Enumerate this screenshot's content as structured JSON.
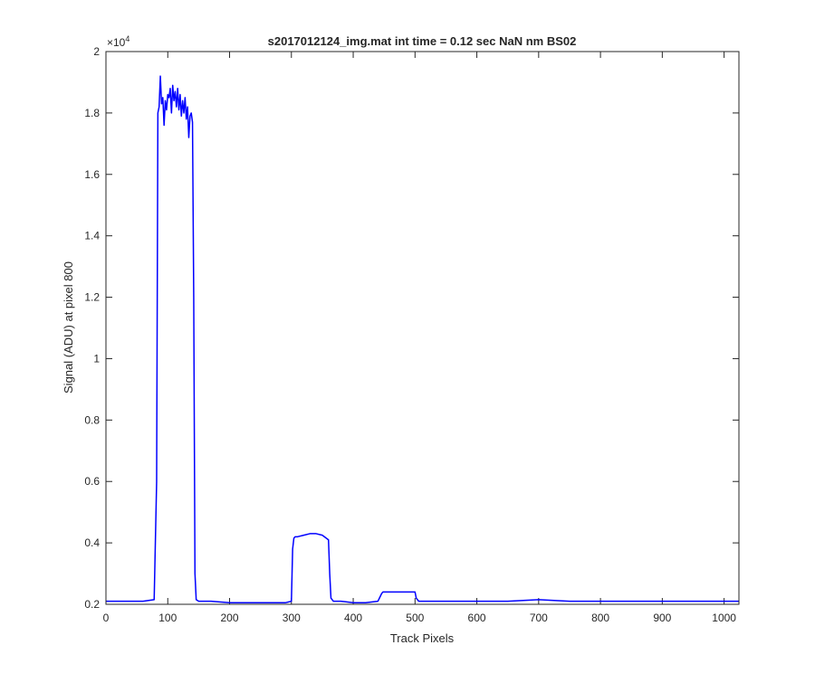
{
  "chart_data": {
    "type": "line",
    "title": "s2017012124_img.mat int time = 0.12 sec  NaN nm BS02",
    "xlabel": "Track Pixels",
    "ylabel": "Signal (ADU) at pixel 800",
    "exponent_label": "×10",
    "exponent_power": "4",
    "xlim": [
      0,
      1024
    ],
    "ylim": [
      0.2,
      2.0
    ],
    "y_scale_multiplier": 10000,
    "x_ticks": [
      0,
      100,
      200,
      300,
      400,
      500,
      600,
      700,
      800,
      900,
      1000
    ],
    "x_tick_labels": [
      "0",
      "100",
      "200",
      "300",
      "400",
      "500",
      "600",
      "700",
      "800",
      "900",
      "1000"
    ],
    "y_ticks": [
      0.2,
      0.4,
      0.6,
      0.8,
      1.0,
      1.2,
      1.4,
      1.6,
      1.8,
      2.0
    ],
    "y_tick_labels": [
      "0.2",
      "0.4",
      "0.6",
      "0.8",
      "1",
      "1.2",
      "1.4",
      "1.6",
      "1.8",
      "2"
    ],
    "grid": false,
    "series": [
      {
        "color": "#0000ff",
        "x": [
          0,
          20,
          40,
          60,
          78,
          82,
          84,
          86,
          88,
          90,
          92,
          94,
          96,
          98,
          100,
          102,
          104,
          106,
          108,
          110,
          112,
          114,
          116,
          118,
          120,
          122,
          124,
          126,
          128,
          130,
          132,
          134,
          136,
          138,
          140,
          142,
          144,
          146,
          150,
          170,
          200,
          230,
          260,
          290,
          300,
          302,
          304,
          306,
          310,
          320,
          330,
          340,
          350,
          360,
          362,
          364,
          368,
          380,
          400,
          420,
          440,
          446,
          448,
          460,
          480,
          500,
          502,
          506,
          520,
          560,
          600,
          650,
          700,
          750,
          800,
          850,
          900,
          950,
          1000,
          1024
        ],
        "y": [
          0.21,
          0.21,
          0.21,
          0.21,
          0.215,
          0.6,
          1.8,
          1.82,
          1.92,
          1.83,
          1.85,
          1.76,
          1.84,
          1.81,
          1.86,
          1.85,
          1.88,
          1.8,
          1.89,
          1.84,
          1.87,
          1.82,
          1.88,
          1.81,
          1.86,
          1.79,
          1.84,
          1.8,
          1.85,
          1.78,
          1.82,
          1.72,
          1.79,
          1.8,
          1.77,
          1.2,
          0.3,
          0.215,
          0.21,
          0.21,
          0.205,
          0.205,
          0.205,
          0.205,
          0.21,
          0.38,
          0.415,
          0.42,
          0.42,
          0.425,
          0.43,
          0.43,
          0.425,
          0.41,
          0.3,
          0.22,
          0.21,
          0.21,
          0.205,
          0.205,
          0.21,
          0.235,
          0.24,
          0.24,
          0.24,
          0.24,
          0.22,
          0.21,
          0.21,
          0.21,
          0.21,
          0.21,
          0.215,
          0.21,
          0.21,
          0.21,
          0.21,
          0.21,
          0.21,
          0.21
        ]
      }
    ]
  }
}
